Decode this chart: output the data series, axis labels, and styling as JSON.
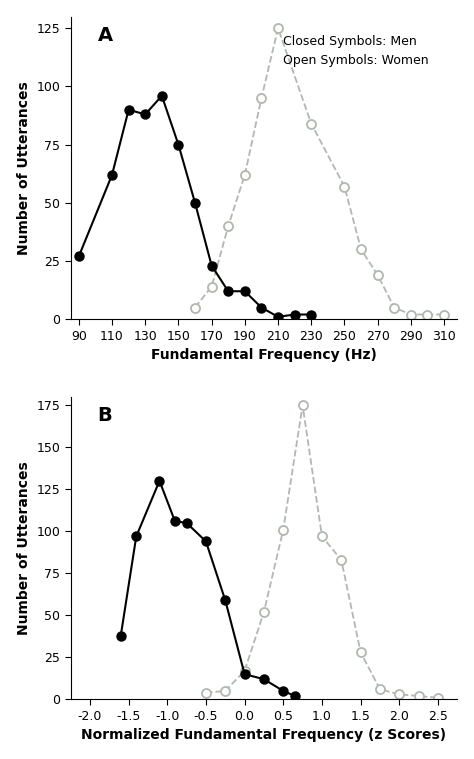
{
  "panel_A": {
    "men_x": [
      90,
      110,
      120,
      130,
      140,
      150,
      160,
      170,
      180,
      190,
      200,
      210,
      220,
      230
    ],
    "men_y": [
      27,
      62,
      90,
      88,
      96,
      75,
      50,
      23,
      12,
      12,
      5,
      1,
      2,
      2
    ],
    "women_x": [
      160,
      170,
      180,
      190,
      200,
      210,
      230,
      250,
      260,
      270,
      280,
      290,
      300,
      310
    ],
    "women_y": [
      5,
      14,
      40,
      62,
      95,
      125,
      84,
      57,
      30,
      19,
      5,
      2,
      2,
      2
    ],
    "xlabel": "Fundamental Frequency (Hz)",
    "ylabel": "Number of Utterances",
    "xlim": [
      85,
      318
    ],
    "ylim": [
      0,
      130
    ],
    "xticks": [
      90,
      110,
      130,
      150,
      170,
      190,
      210,
      230,
      250,
      270,
      290,
      310
    ],
    "yticks": [
      0,
      25,
      50,
      75,
      100,
      125
    ],
    "label": "A"
  },
  "panel_B": {
    "men_x": [
      -1.6,
      -1.4,
      -1.1,
      -0.9,
      -0.75,
      -0.5,
      -0.25,
      0.0,
      0.25,
      0.5,
      0.65
    ],
    "men_y": [
      38,
      97,
      130,
      106,
      105,
      94,
      59,
      15,
      12,
      5,
      2
    ],
    "women_x": [
      -0.5,
      -0.25,
      0.0,
      0.25,
      0.5,
      0.75,
      1.0,
      1.25,
      1.5,
      1.75,
      2.0,
      2.25,
      2.5
    ],
    "women_y": [
      4,
      5,
      17,
      52,
      101,
      175,
      97,
      83,
      28,
      6,
      3,
      2,
      1
    ],
    "xlabel": "Normalized Fundamental Frequency (z Scores)",
    "ylabel": "Number of Utterances",
    "xlim": [
      -2.25,
      2.75
    ],
    "ylim": [
      0,
      180
    ],
    "xticks": [
      -2.0,
      -1.5,
      -1.0,
      -0.5,
      0.0,
      0.5,
      1.0,
      1.5,
      2.0,
      2.5
    ],
    "yticks": [
      0,
      25,
      50,
      75,
      100,
      125,
      150,
      175
    ],
    "label": "B"
  },
  "men_color": "#000000",
  "women_color": "#b0b8b0",
  "legend_text": "Closed Symbols: Men\nOpen Symbols: Women",
  "background_color": "#ffffff"
}
